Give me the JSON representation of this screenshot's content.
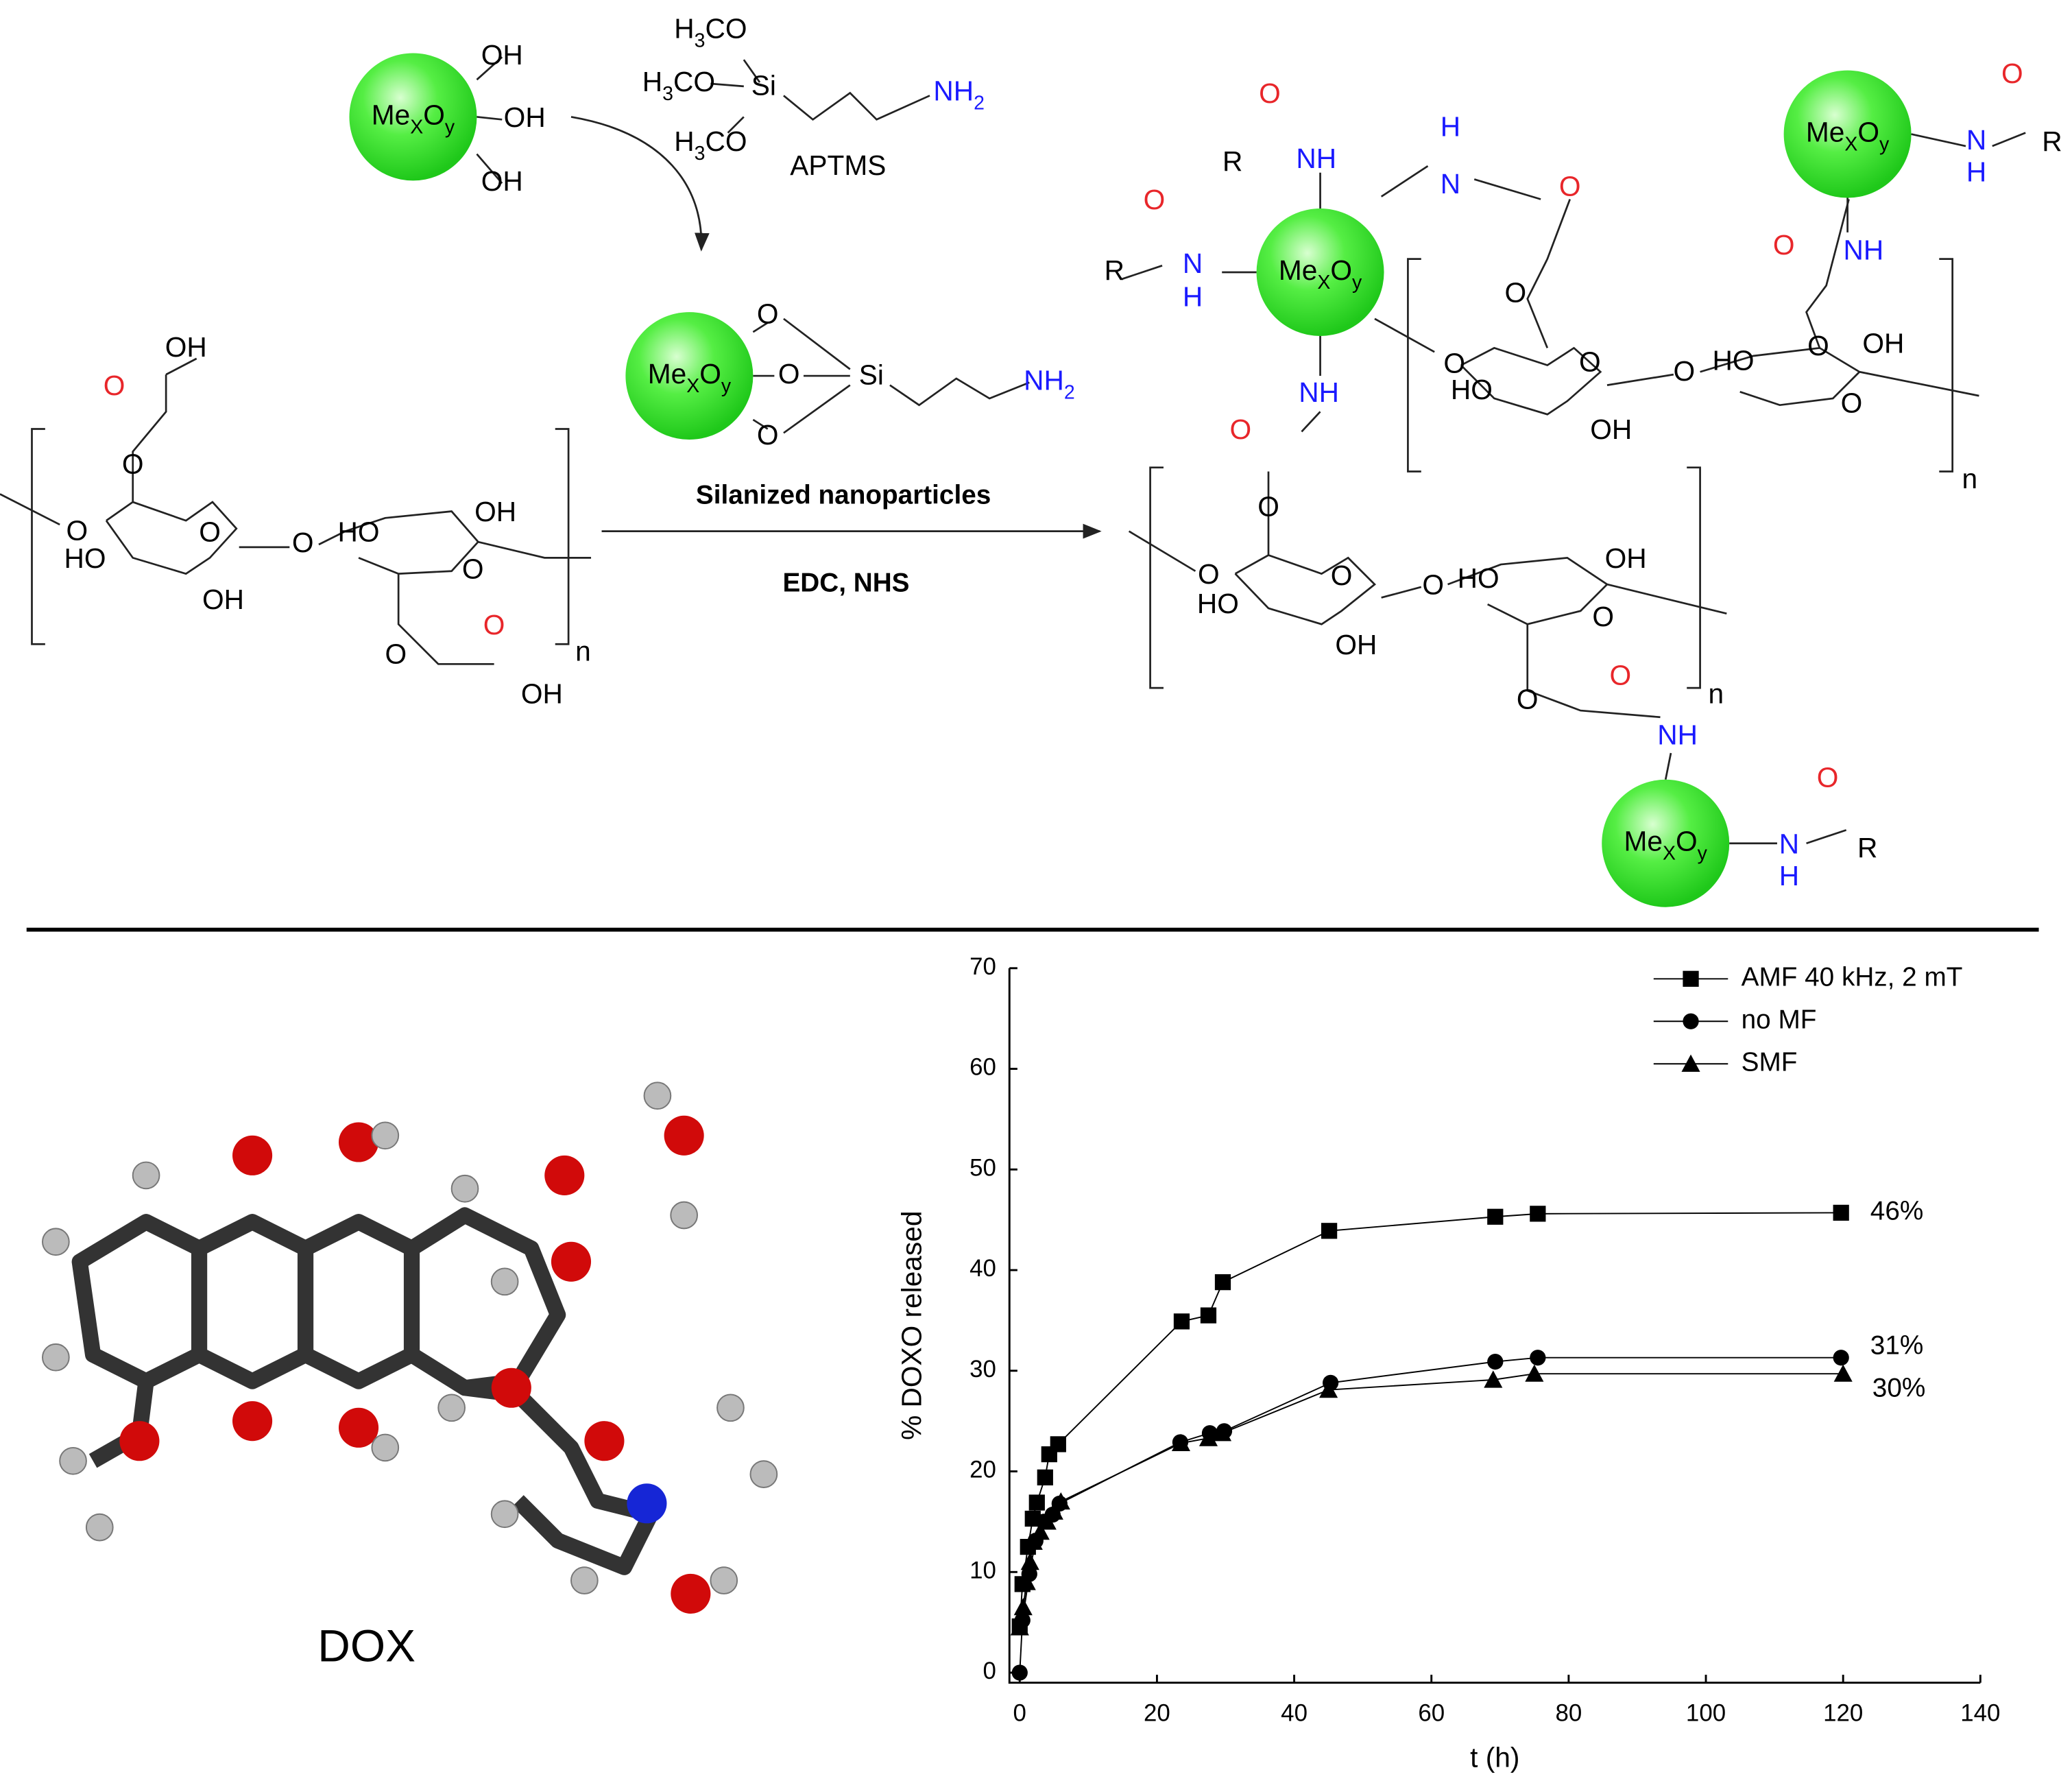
{
  "scheme": {
    "particle_label": [
      "Me",
      "X",
      "O",
      "y"
    ],
    "labels": [
      "OH",
      "OH",
      "OH",
      [
        "H",
        "3",
        "CO"
      ],
      [
        "H",
        "3",
        "CO"
      ],
      "Si",
      [
        "H",
        "3",
        "CO"
      ],
      [
        "NH",
        "2"
      ],
      "APTMS",
      "O",
      "O",
      "O",
      "Si",
      [
        "NH",
        "2"
      ],
      "Silanized nanoparticles",
      "EDC, NHS",
      "OH",
      "O",
      "O",
      "O",
      "O",
      "HO",
      "OH",
      "O",
      "HO",
      "OH",
      "O",
      "O",
      "O",
      "OH",
      "n",
      "O",
      "R",
      "NH",
      "H",
      "N",
      "O",
      "O",
      "R",
      "N",
      "H",
      "NH",
      "O",
      "O",
      "O",
      "O",
      "HO",
      "OH",
      "O",
      "HO",
      "OH",
      "O",
      "O",
      "n",
      "O",
      "N",
      "H",
      "R",
      "O",
      "NH",
      "O",
      "O",
      "O",
      "HO",
      "OH",
      "O",
      "HO",
      "OH",
      "O",
      "O",
      "O",
      "NH",
      "n",
      "O",
      "N",
      "H",
      "R"
    ]
  },
  "molecule": {
    "label": "DOX"
  },
  "chart_data": {
    "type": "line",
    "x_label": "t (h)",
    "y_label": "% DOXO released",
    "xlim": [
      -1.5,
      140
    ],
    "ylim": [
      -1,
      70
    ],
    "xticks": [
      0,
      20,
      40,
      60,
      80,
      100,
      120,
      140
    ],
    "yticks": [
      0,
      10,
      20,
      30,
      40,
      50,
      60,
      70
    ],
    "legend": "top right",
    "series": [
      {
        "name": "AMF 40 kHz, 2 mT",
        "color": "#000000",
        "marker": "square",
        "x": [
          0,
          0.4,
          1.2,
          1.9,
          2.5,
          3.7,
          4.3,
          5.6,
          23.6,
          27.5,
          29.6,
          45.1,
          69.3,
          75.5,
          119.7
        ],
        "values": [
          4.6,
          8.8,
          12.5,
          15.3,
          16.9,
          19.4,
          21.7,
          22.7,
          34.9,
          35.5,
          38.8,
          43.9,
          45.3,
          45.6,
          45.7
        ]
      },
      {
        "name": "no MF",
        "color": "#000000",
        "marker": "circle",
        "x": [
          0,
          0.4,
          1.4,
          2.3,
          3.5,
          4.8,
          5.8,
          23.4,
          27.7,
          29.8,
          45.3,
          69.3,
          75.5,
          119.7
        ],
        "values": [
          0,
          5.2,
          9.8,
          13.1,
          15,
          15.7,
          16.8,
          22.9,
          23.8,
          24,
          28.8,
          30.9,
          31.3,
          31.3
        ]
      },
      {
        "name": "SMF",
        "color": "#000000",
        "marker": "triangle",
        "x": [
          0,
          0.5,
          1,
          1.5,
          2,
          3,
          4,
          5,
          6,
          23.5,
          27.5,
          29.5,
          45,
          69,
          75,
          120
        ],
        "values": [
          4.5,
          6.5,
          9,
          11,
          13,
          14,
          15,
          16,
          17,
          22.8,
          23.3,
          23.8,
          28.1,
          29.1,
          29.7,
          29.7
        ]
      }
    ],
    "annotations": [
      "46%",
      "31%",
      "30%"
    ]
  }
}
